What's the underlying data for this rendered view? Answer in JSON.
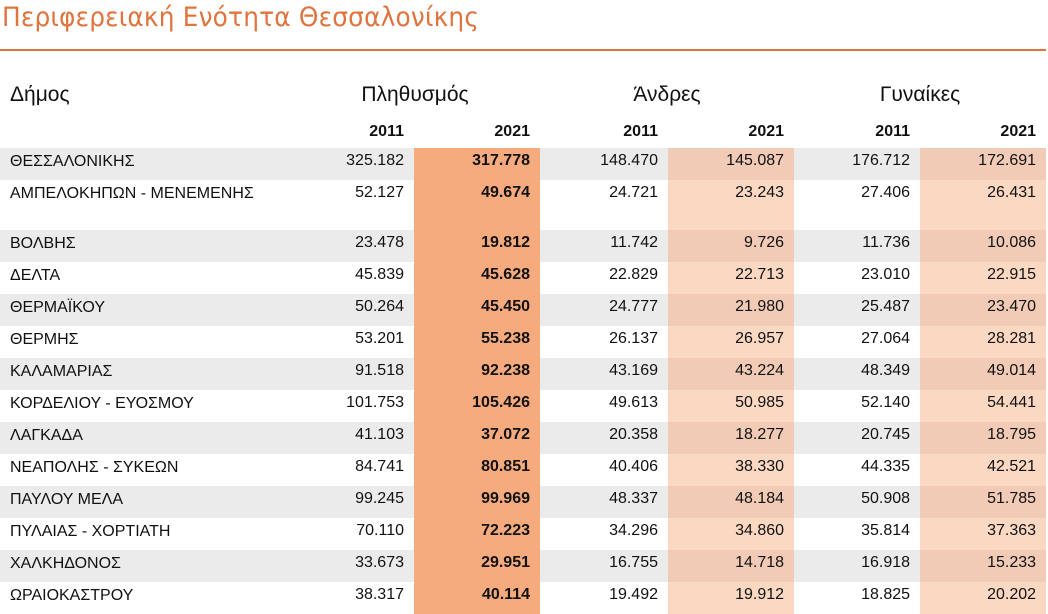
{
  "title": "Περιφερειακή Ενότητα Θεσσαλονίκης",
  "headers": {
    "municipality": "Δήμος",
    "population": "Πληθυσμός",
    "men": "Άνδρες",
    "women": "Γυναίκες",
    "years": [
      "2011",
      "2021",
      "2011",
      "2021",
      "2011",
      "2021"
    ]
  },
  "colors": {
    "accent": "#e0743f",
    "highlight_strong": "#f5ab7e",
    "highlight_light": "#fbd8c1",
    "stripe": "#ebebeb"
  },
  "rows": [
    {
      "name": "ΘΕΣΣΑΛΟΝΙΚΗΣ",
      "pop2011": "325.182",
      "pop2021": "317.778",
      "men2011": "148.470",
      "men2021": "145.087",
      "women2011": "176.712",
      "women2021": "172.691"
    },
    {
      "name": "ΑΜΠΕΛΟΚΗΠΩΝ - ΜΕΝΕΜΕΝΗΣ",
      "pop2011": "52.127",
      "pop2021": "49.674",
      "men2011": "24.721",
      "men2021": "23.243",
      "women2011": "27.406",
      "women2021": "26.431"
    },
    {
      "name": "ΒΟΛΒΗΣ",
      "pop2011": "23.478",
      "pop2021": "19.812",
      "men2011": "11.742",
      "men2021": "9.726",
      "women2011": "11.736",
      "women2021": "10.086"
    },
    {
      "name": "ΔΕΛΤΑ",
      "pop2011": "45.839",
      "pop2021": "45.628",
      "men2011": "22.829",
      "men2021": "22.713",
      "women2011": "23.010",
      "women2021": "22.915"
    },
    {
      "name": "ΘΕΡΜΑΪΚΟΥ",
      "pop2011": "50.264",
      "pop2021": "45.450",
      "men2011": "24.777",
      "men2021": "21.980",
      "women2011": "25.487",
      "women2021": "23.470"
    },
    {
      "name": "ΘΕΡΜΗΣ",
      "pop2011": "53.201",
      "pop2021": "55.238",
      "men2011": "26.137",
      "men2021": "26.957",
      "women2011": "27.064",
      "women2021": "28.281"
    },
    {
      "name": "ΚΑΛΑΜΑΡΙΑΣ",
      "pop2011": "91.518",
      "pop2021": "92.238",
      "men2011": "43.169",
      "men2021": "43.224",
      "women2011": "48.349",
      "women2021": "49.014"
    },
    {
      "name": "ΚΟΡΔΕΛΙΟΥ - ΕΥΟΣΜΟΥ",
      "pop2011": "101.753",
      "pop2021": "105.426",
      "men2011": "49.613",
      "men2021": "50.985",
      "women2011": "52.140",
      "women2021": "54.441"
    },
    {
      "name": "ΛΑΓΚΑΔΑ",
      "pop2011": "41.103",
      "pop2021": "37.072",
      "men2011": "20.358",
      "men2021": "18.277",
      "women2011": "20.745",
      "women2021": "18.795"
    },
    {
      "name": "ΝΕΑΠΟΛΗΣ - ΣΥΚΕΩΝ",
      "pop2011": "84.741",
      "pop2021": "80.851",
      "men2011": "40.406",
      "men2021": "38.330",
      "women2011": "44.335",
      "women2021": "42.521"
    },
    {
      "name": "ΠΑΥΛΟΥ ΜΕΛΑ",
      "pop2011": "99.245",
      "pop2021": "99.969",
      "men2011": "48.337",
      "men2021": "48.184",
      "women2011": "50.908",
      "women2021": "51.785"
    },
    {
      "name": "ΠΥΛΑΙΑΣ - ΧΟΡΤΙΑΤΗ",
      "pop2011": "70.110",
      "pop2021": "72.223",
      "men2011": "34.296",
      "men2021": "34.860",
      "women2011": "35.814",
      "women2021": "37.363"
    },
    {
      "name": "ΧΑΛΚΗΔΟΝΟΣ",
      "pop2011": "33.673",
      "pop2021": "29.951",
      "men2011": "16.755",
      "men2021": "14.718",
      "women2011": "16.918",
      "women2021": "15.233"
    },
    {
      "name": "ΩΡΑΙΟΚΑΣΤΡΟΥ",
      "pop2011": "38.317",
      "pop2021": "40.114",
      "men2011": "19.492",
      "men2021": "19.912",
      "women2011": "18.825",
      "women2021": "20.202"
    }
  ]
}
